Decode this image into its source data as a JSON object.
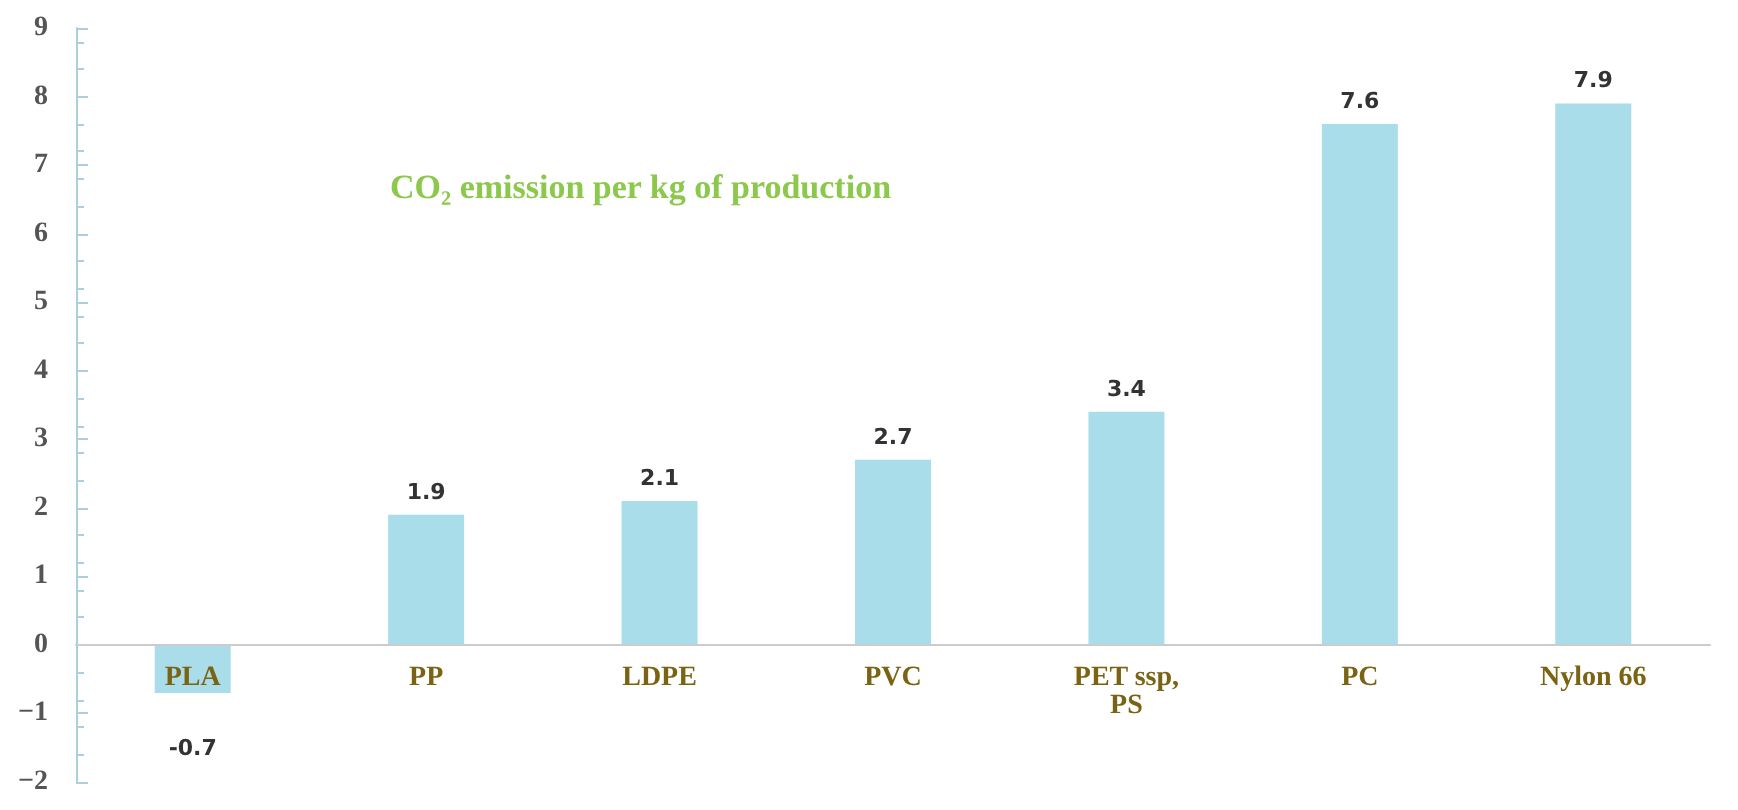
{
  "chart_data": {
    "type": "bar",
    "title": "CO₂ emission per kg of production",
    "categories": [
      "PLA",
      "PP",
      "LDPE",
      "PVC",
      "PET ssp, PS",
      "PC",
      "Nylon 66"
    ],
    "values": [
      -0.7,
      1.9,
      2.1,
      2.7,
      3.4,
      7.6,
      7.9
    ],
    "color": "#a9dde9",
    "ylim": [
      -2,
      9
    ],
    "yticks": [
      -2,
      -1,
      0,
      1,
      2,
      3,
      4,
      5,
      6,
      7,
      8,
      9
    ],
    "grid": false,
    "data_labels": true
  }
}
